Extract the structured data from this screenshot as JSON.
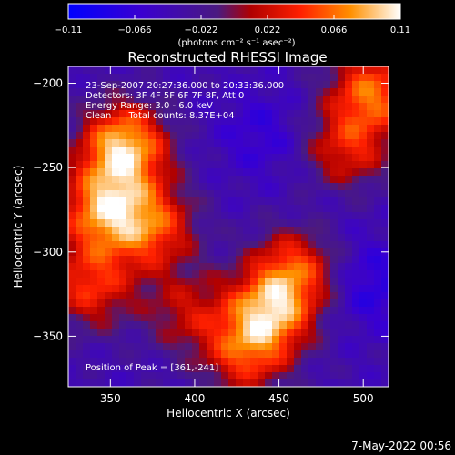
{
  "chart_data": {
    "type": "heatmap",
    "title": "Reconstructed RHESSI Image",
    "xlabel": "Heliocentric X (arcsec)",
    "ylabel": "Heliocentric Y (arcsec)",
    "xlim": [
      325,
      515
    ],
    "ylim": [
      -380,
      -190
    ],
    "xticks": [
      350,
      400,
      450,
      500
    ],
    "yticks": [
      -200,
      -250,
      -300,
      -350
    ],
    "colorbar": {
      "min": -0.11,
      "max": 0.11,
      "ticks": [
        -0.11,
        -0.066,
        -0.022,
        0.022,
        0.066,
        0.11
      ],
      "tick_labels": [
        "−0.11",
        "−0.066",
        "−0.022",
        "0.022",
        "0.066",
        "0.11"
      ],
      "label": "(photons cm⁻² s⁻¹ asec⁻²)"
    },
    "annotations": [
      "23-Sep-2007 20:27:36.000 to 20:33:36.000",
      "Detectors: 3F 4F 5F 6F 7F 8F, Att 0",
      "Energy Range: 3.0 - 6.0 keV",
      "Clean      Total counts: 8.37E+04"
    ],
    "peak_label": "Position of Peak = [361,-241]",
    "peak": [
      361,
      -241
    ],
    "sources": [
      {
        "x": 358,
        "y": -238,
        "value": 0.11
      },
      {
        "x": 345,
        "y": -275,
        "value": 0.08
      },
      {
        "x": 375,
        "y": -285,
        "value": 0.06
      },
      {
        "x": 338,
        "y": -320,
        "value": 0.05
      },
      {
        "x": 445,
        "y": -335,
        "value": 0.08
      },
      {
        "x": 430,
        "y": -360,
        "value": 0.05
      },
      {
        "x": 460,
        "y": -310,
        "value": 0.05
      },
      {
        "x": 505,
        "y": -205,
        "value": 0.07
      },
      {
        "x": 490,
        "y": -240,
        "value": 0.04
      },
      {
        "x": 395,
        "y": -335,
        "value": 0.02
      },
      {
        "x": 440,
        "y": -230,
        "value": -0.07
      },
      {
        "x": 505,
        "y": -320,
        "value": -0.08
      },
      {
        "x": 480,
        "y": -270,
        "value": -0.05
      }
    ],
    "background": -0.04,
    "grid": false
  },
  "footer_date": "7-May-2022 00:56"
}
